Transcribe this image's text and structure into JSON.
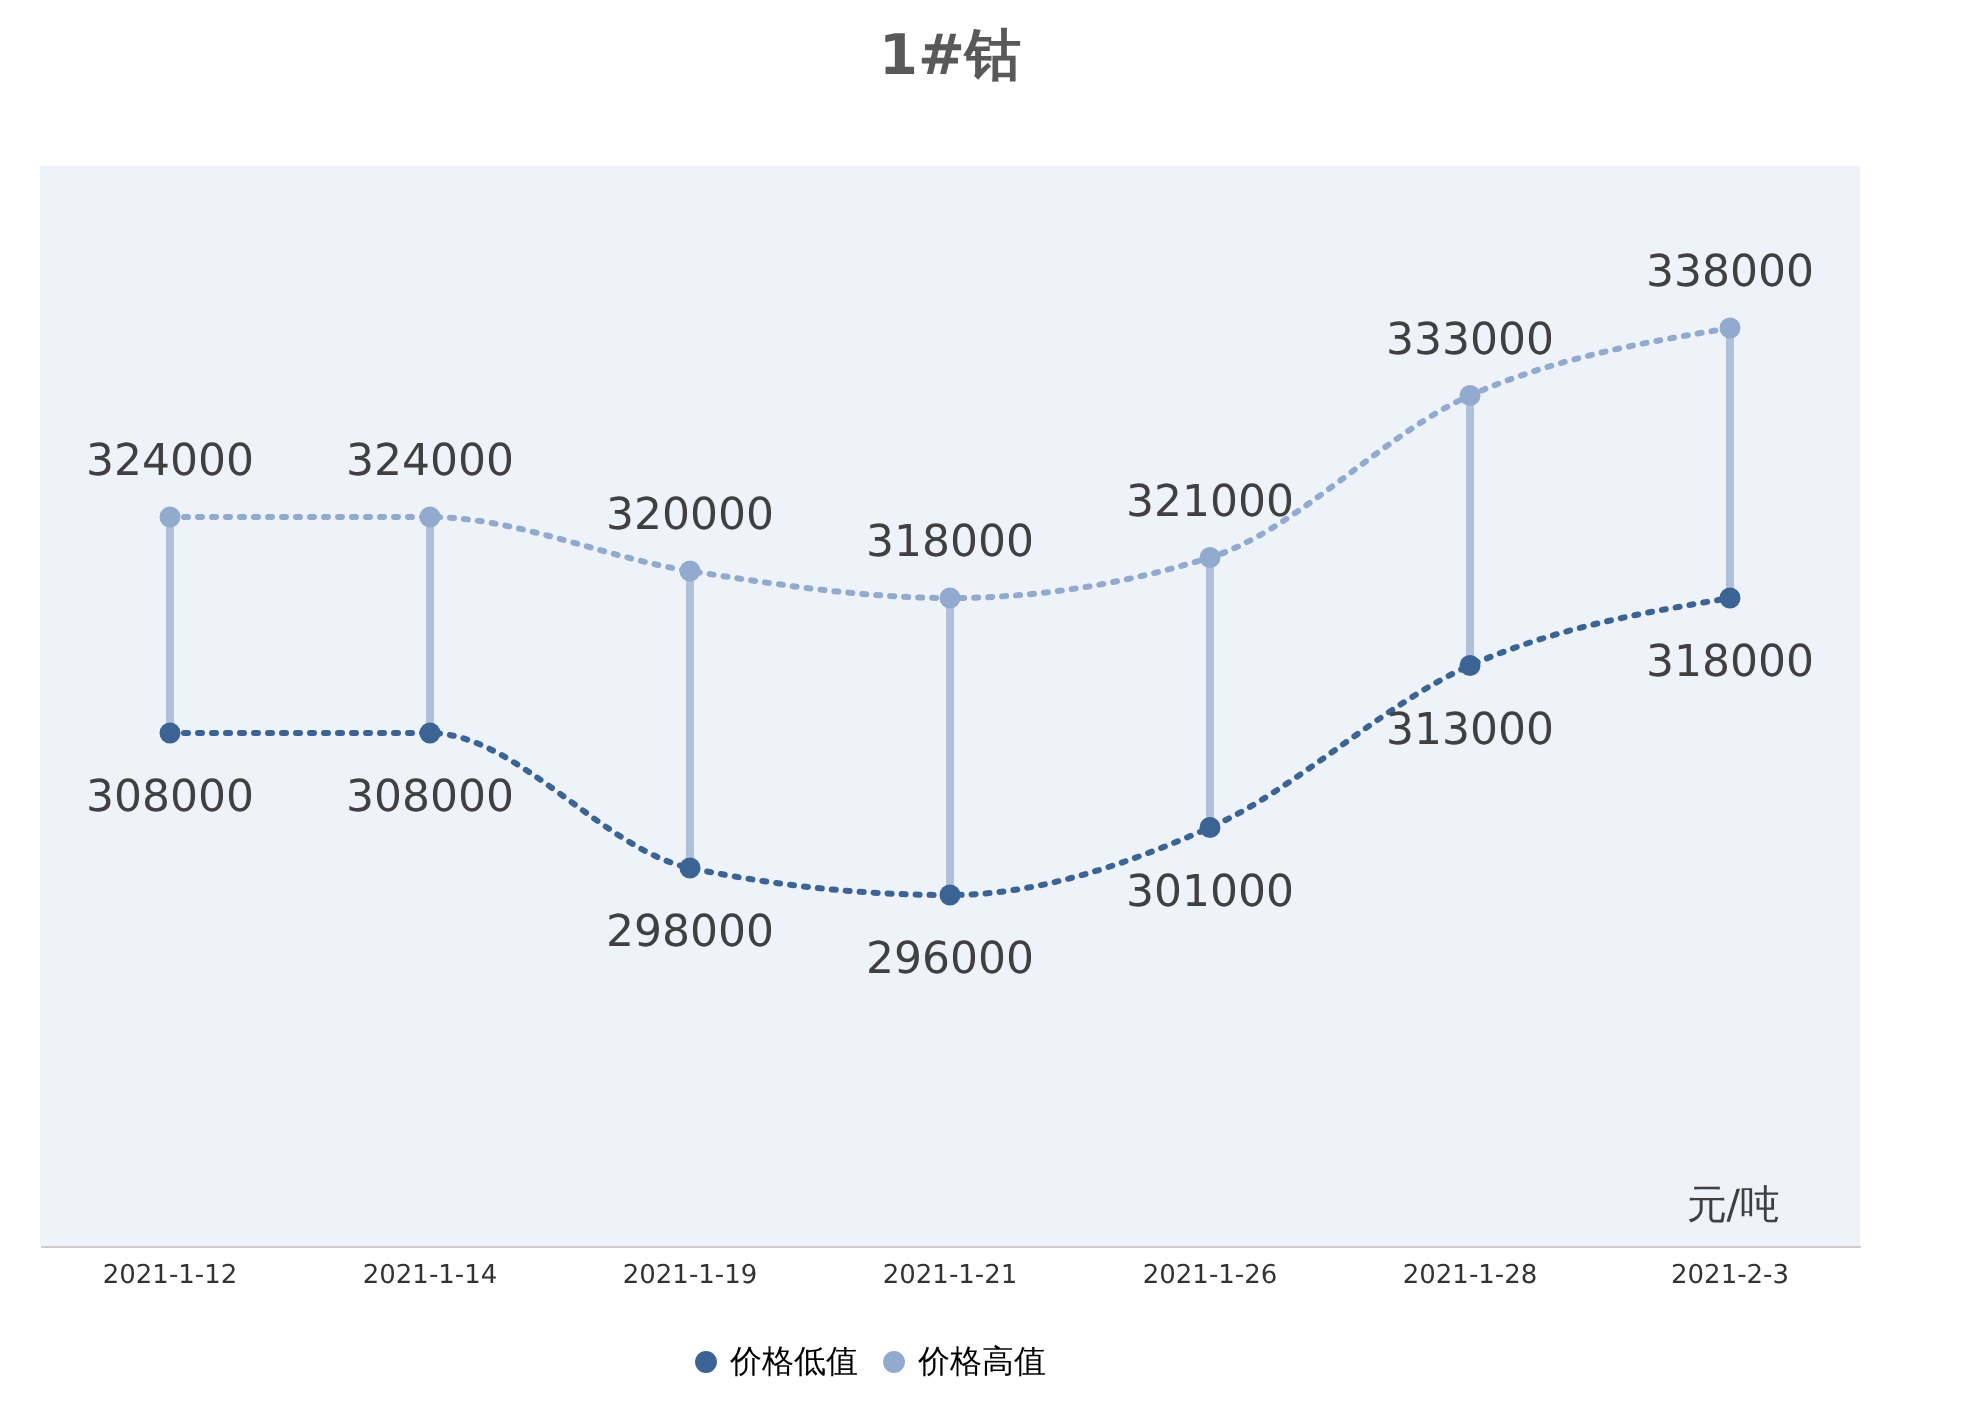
{
  "chart_data": {
    "type": "line",
    "title": "1#钴",
    "ylabel": "元/吨",
    "categories": [
      "2021-1-12",
      "2021-1-14",
      "2021-1-19",
      "2021-1-21",
      "2021-1-26",
      "2021-1-28",
      "2021-2-3"
    ],
    "series": [
      {
        "name": "价格低值",
        "color": "#3b6394",
        "values": [
          308000,
          308000,
          298000,
          296000,
          301000,
          313000,
          318000
        ]
      },
      {
        "name": "价格高值",
        "color": "#93aacf",
        "values": [
          324000,
          324000,
          320000,
          318000,
          321000,
          333000,
          338000
        ]
      }
    ],
    "ylim": [
      270000,
      350000
    ],
    "tick_labels": "x",
    "data_labels": true,
    "legend": "bottom",
    "grid": false,
    "marker": "circle",
    "line_style": "dotted"
  }
}
